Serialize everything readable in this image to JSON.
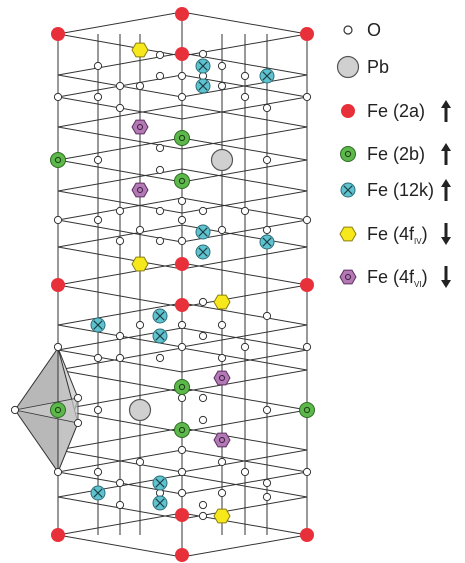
{
  "legend": [
    {
      "symbol": "o-atom",
      "label": "O",
      "sub": "",
      "suffix": "",
      "spin": ""
    },
    {
      "symbol": "pb-atom",
      "label": "Pb",
      "sub": "",
      "suffix": "",
      "spin": ""
    },
    {
      "symbol": "fe-2a-atom",
      "label": "Fe (2a)",
      "sub": "",
      "suffix": "",
      "spin": "up"
    },
    {
      "symbol": "fe-2b-atom",
      "label": "Fe (2b)",
      "sub": "",
      "suffix": "",
      "spin": "up"
    },
    {
      "symbol": "fe-12k-atom",
      "label": "Fe (12k)",
      "sub": "",
      "suffix": "",
      "spin": "up"
    },
    {
      "symbol": "fe-4fiv-atom",
      "label": "Fe (4f",
      "sub": "IV",
      "suffix": ")",
      "spin": "down"
    },
    {
      "symbol": "fe-4fvi-atom",
      "label": "Fe (4f",
      "sub": "VI",
      "suffix": ")",
      "spin": "down"
    }
  ],
  "colors": {
    "fe_2a": "#e8303a",
    "fe_2b": "#5cb84a",
    "fe_12k": "#5fc2cf",
    "fe_4f_iv": "#f7e81c",
    "fe_4f_vi": "#b379b5",
    "pb": "#d0d0d0",
    "o": "#ffffff",
    "polyhedron": "#c8c8c8",
    "line": "#333333"
  }
}
